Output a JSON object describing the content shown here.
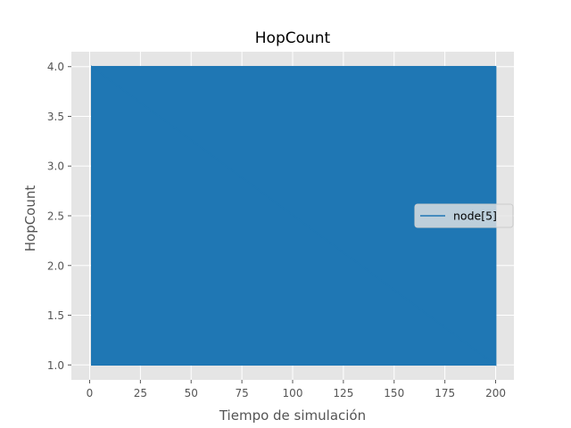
{
  "chart_data": {
    "type": "line",
    "title": "HopCount",
    "xlabel": "Tiempo de simulación",
    "ylabel": "HopCount",
    "xlim": [
      -9,
      209
    ],
    "ylim": [
      0.85,
      4.15
    ],
    "xticks": [
      0,
      25,
      50,
      75,
      100,
      125,
      150,
      175,
      200
    ],
    "xtick_labels": [
      "0",
      "25",
      "50",
      "75",
      "100",
      "125",
      "150",
      "175",
      "200"
    ],
    "yticks": [
      1.0,
      1.5,
      2.0,
      2.5,
      3.0,
      3.5,
      4.0
    ],
    "ytick_labels": [
      "1.0",
      "1.5",
      "2.0",
      "2.5",
      "3.0",
      "3.5",
      "4.0"
    ],
    "grid": true,
    "legend_position": "center-right",
    "series": [
      {
        "name": "node[5]",
        "color": "#1f77b4",
        "x_start": 1.0,
        "x_end": 200.0,
        "y_min": 1.0,
        "y_max": 4.0,
        "description_points": [
          [
            1.0,
            2.0
          ],
          [
            1.0,
            1.0
          ],
          [
            1.0,
            4.0
          ],
          [
            200.0,
            1.0
          ],
          [
            200.0,
            4.0
          ],
          [
            200.0,
            3.0
          ]
        ]
      }
    ]
  }
}
